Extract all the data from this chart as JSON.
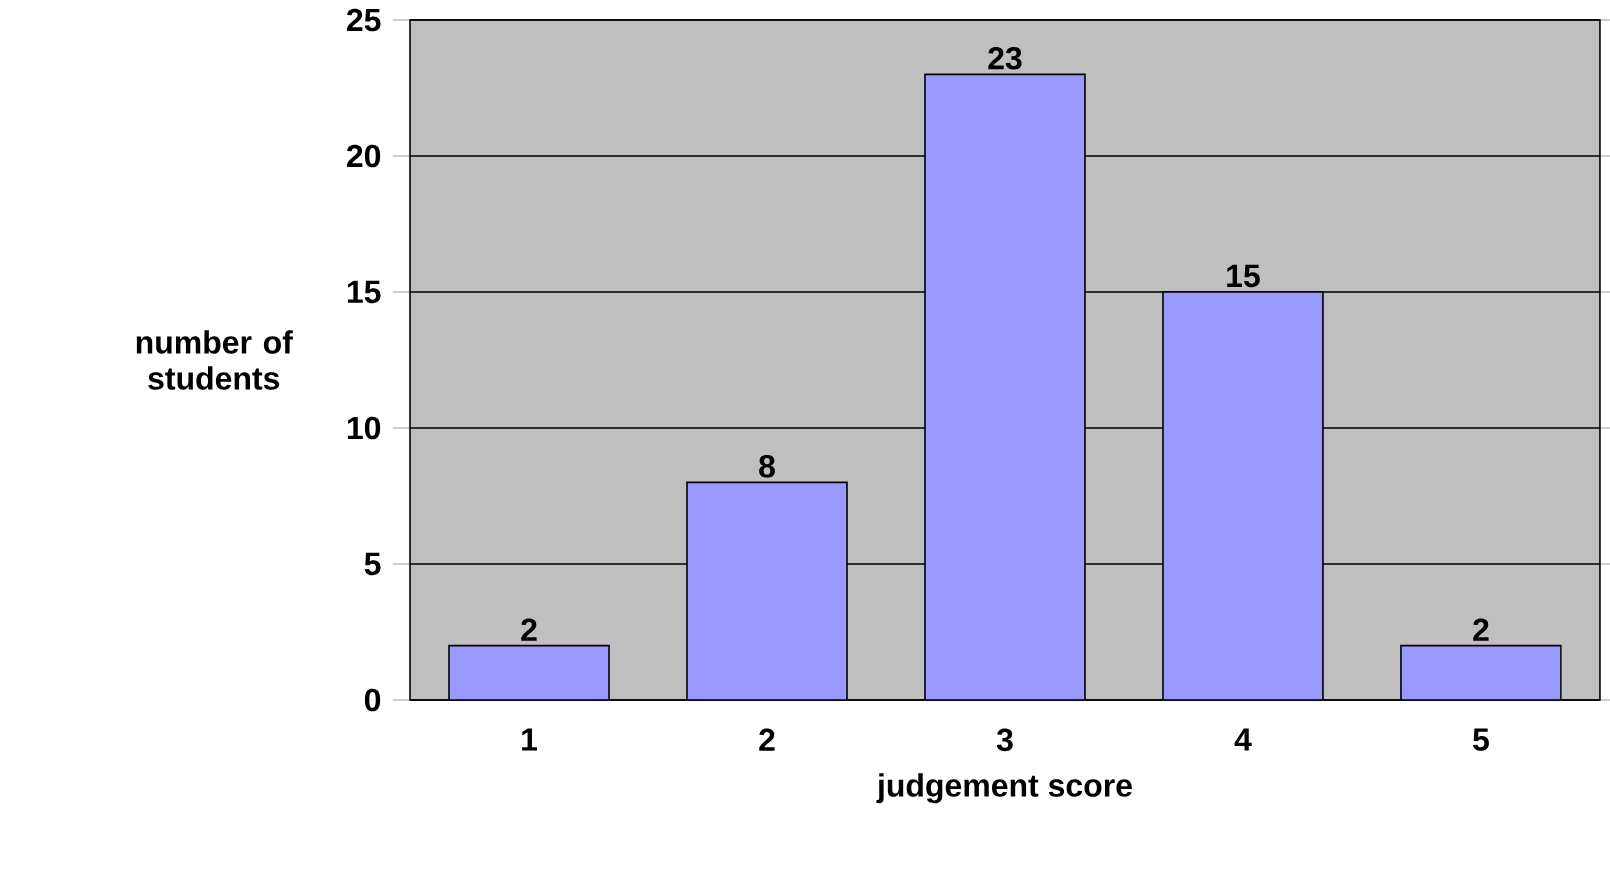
{
  "chart_data": {
    "type": "bar",
    "xlabel": "judgement score",
    "ylabel": "number of students",
    "categories": [
      "1",
      "2",
      "3",
      "4",
      "5"
    ],
    "values": [
      2,
      8,
      23,
      15,
      2
    ],
    "color": "#9999ff",
    "ylim": [
      0,
      25
    ],
    "yticks": [
      0,
      5,
      10,
      15,
      20,
      25
    ],
    "grid": "y",
    "data_labels": true
  }
}
